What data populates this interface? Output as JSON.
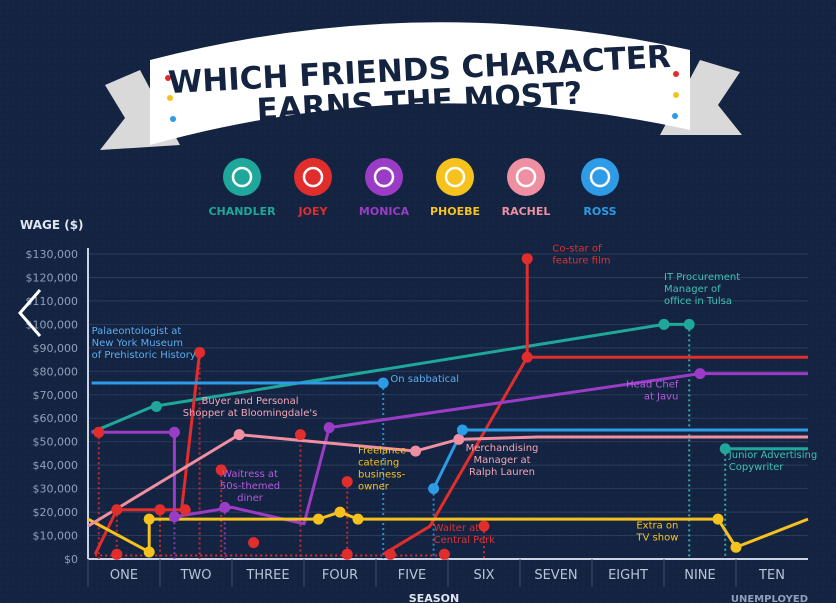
{
  "banner": {
    "line1": "WHICH FRIENDS CHARACTER",
    "line2": "EARNS THE MOST?"
  },
  "characters": [
    {
      "name": "CHANDLER",
      "color": "#1fa79b",
      "icon": "smiley-face-icon"
    },
    {
      "name": "JOEY",
      "color": "#e22d2d",
      "icon": "clapperboard-icon"
    },
    {
      "name": "MONICA",
      "color": "#9b3cc6",
      "icon": "chef-hat-icon"
    },
    {
      "name": "PHOEBE",
      "color": "#f6c21d",
      "icon": "guitar-icon"
    },
    {
      "name": "RACHEL",
      "color": "#ee8fa2",
      "icon": "hanger-icon"
    },
    {
      "name": "ROSS",
      "color": "#2e9be6",
      "icon": "dinosaur-footprint-icon"
    }
  ],
  "chart_data": {
    "type": "line",
    "ylabel": "WAGE ($)",
    "xlabel": "SEASON",
    "ylim": [
      0,
      130000
    ],
    "y_ticks": [
      "$0",
      "$10,000",
      "$20,000",
      "$30,000",
      "$40,000",
      "$50,000",
      "$60,000",
      "$70,000",
      "$80,000",
      "$90,000",
      "$100,000",
      "$110,000",
      "$120,000",
      "$130,000"
    ],
    "categories": [
      "ONE",
      "TWO",
      "THREE",
      "FOUR",
      "FIVE",
      "SIX",
      "SEVEN",
      "EIGHT",
      "NINE",
      "TEN"
    ],
    "unemployed_label": "UNEMPLOYED",
    "series": [
      {
        "name": "CHANDLER",
        "color": "#1fa79b",
        "points": [
          [
            0.05,
            54000
          ],
          [
            0.9,
            65000
          ],
          [
            8.0,
            100000
          ],
          [
            8.3,
            100000
          ]
        ],
        "job_stubs": [
          [
            8.85,
            47000,
            10.0,
            47000
          ]
        ]
      },
      {
        "name": "JOEY",
        "color": "#e22d2d",
        "points": [
          [
            0.1,
            2000
          ],
          [
            0.4,
            21000
          ],
          [
            1.0,
            21000
          ],
          [
            1.3,
            21000
          ],
          [
            1.55,
            88000
          ]
        ],
        "points2": [
          [
            4.1,
            2000
          ],
          [
            4.75,
            14000
          ],
          [
            6.1,
            86000
          ],
          [
            10.0,
            86000
          ]
        ],
        "spike": [
          [
            6.1,
            128000
          ],
          [
            6.1,
            86000
          ]
        ],
        "extra_points": [
          [
            0.0,
            54000
          ],
          [
            1.8,
            38000
          ],
          [
            2.3,
            6000
          ],
          [
            3.25,
            53000
          ],
          [
            3.45,
            2000
          ],
          [
            3.1,
            2000
          ],
          [
            3.55,
            33000
          ],
          [
            3.65,
            2000
          ]
        ]
      },
      {
        "name": "MONICA",
        "color": "#9b3cc6",
        "points": [
          [
            0.05,
            54000
          ],
          [
            1.2,
            54000
          ],
          [
            1.2,
            18000
          ],
          [
            2.0,
            22000
          ],
          [
            3.0,
            15000
          ],
          [
            3.35,
            56000
          ],
          [
            8.5,
            79000
          ],
          [
            10.0,
            79000
          ]
        ]
      },
      {
        "name": "PHOEBE",
        "color": "#f6c21d",
        "points": [
          [
            0.0,
            17000
          ],
          [
            0.85,
            3000
          ],
          [
            0.85,
            17000
          ],
          [
            3.2,
            17000
          ],
          [
            3.5,
            20000
          ],
          [
            3.75,
            17000
          ],
          [
            8.75,
            17000
          ],
          [
            9.0,
            5000
          ],
          [
            10.0,
            17000
          ]
        ]
      },
      {
        "name": "RACHEL",
        "color": "#ee8fa2",
        "points": [
          [
            0.0,
            14000
          ],
          [
            2.1,
            53000
          ],
          [
            2.8,
            51000
          ],
          [
            4.55,
            46000
          ],
          [
            5.15,
            51000
          ],
          [
            6.25,
            52000
          ],
          [
            10.0,
            52000
          ]
        ]
      },
      {
        "name": "ROSS",
        "color": "#2e9be6",
        "points": [
          [
            0.05,
            75000
          ],
          [
            4.1,
            75000
          ]
        ],
        "points2": [
          [
            4.8,
            30000
          ],
          [
            5.2,
            55000
          ],
          [
            10.0,
            55000
          ]
        ]
      }
    ],
    "annotations": [
      {
        "text": [
          "Palaeontologist at",
          "New York Museum",
          "of Prehistoric History"
        ],
        "color": "#5aaef0",
        "x": 0.05,
        "y": 96000,
        "anchor": "start"
      },
      {
        "text": [
          "Buyer and Personal",
          "Shopper at Bloomingdale's"
        ],
        "color": "#f3a7b6",
        "x": 2.25,
        "y": 66000,
        "anchor": "middle"
      },
      {
        "text": [
          "Waitress at",
          "50s-themed",
          "diner"
        ],
        "color": "#b65bdc",
        "x": 2.25,
        "y": 35000,
        "anchor": "middle"
      },
      {
        "text": [
          "Freelance",
          "catering",
          "business-",
          "owner"
        ],
        "color": "#f6c21d",
        "x": 3.75,
        "y": 45000,
        "anchor": "start"
      },
      {
        "text": [
          "On sabbatical"
        ],
        "color": "#5aaef0",
        "x": 4.2,
        "y": 75500,
        "anchor": "start"
      },
      {
        "text": [
          "Co-star of",
          "feature film"
        ],
        "color": "#e03131",
        "x": 6.45,
        "y": 131000,
        "anchor": "start"
      },
      {
        "text": [
          "IT Procurement",
          "Manager of",
          "office in Tulsa"
        ],
        "color": "#3fc1b3",
        "x": 8.0,
        "y": 119000,
        "anchor": "start"
      },
      {
        "text": [
          "Head Chef",
          "at Javu"
        ],
        "color": "#b65bdc",
        "x": 8.2,
        "y": 73000,
        "anchor": "end"
      },
      {
        "text": [
          "Merchandising",
          "Manager at",
          "Ralph Lauren"
        ],
        "color": "#f3a7b6",
        "x": 5.75,
        "y": 46000,
        "anchor": "middle"
      },
      {
        "text": [
          "Junior Advertising",
          "Copywriter"
        ],
        "color": "#3fc1b3",
        "x": 8.9,
        "y": 43000,
        "anchor": "start"
      },
      {
        "text": [
          "Waiter at",
          "Central Perk"
        ],
        "color": "#e03131",
        "x": 4.8,
        "y": 12000,
        "anchor": "start"
      },
      {
        "text": [
          "Extra on",
          "TV show"
        ],
        "color": "#f6c21d",
        "x": 8.2,
        "y": 13000,
        "anchor": "end"
      }
    ],
    "dots": [
      {
        "x": 0.95,
        "y": 65000,
        "c": "#1fa79b"
      },
      {
        "x": 8.0,
        "y": 100000,
        "c": "#1fa79b"
      },
      {
        "x": 8.35,
        "y": 100000,
        "c": "#1fa79b"
      },
      {
        "x": 8.85,
        "y": 47000,
        "c": "#1fa79b"
      },
      {
        "x": 0.15,
        "y": 54000,
        "c": "#e22d2d"
      },
      {
        "x": 0.4,
        "y": 21000,
        "c": "#e22d2d"
      },
      {
        "x": 1.0,
        "y": 21000,
        "c": "#e22d2d"
      },
      {
        "x": 1.35,
        "y": 21000,
        "c": "#e22d2d"
      },
      {
        "x": 1.55,
        "y": 88000,
        "c": "#e22d2d"
      },
      {
        "x": 0.4,
        "y": 2000,
        "c": "#e22d2d"
      },
      {
        "x": 1.85,
        "y": 38000,
        "c": "#e22d2d"
      },
      {
        "x": 2.3,
        "y": 7000,
        "c": "#e22d2d"
      },
      {
        "x": 2.95,
        "y": 53000,
        "c": "#e22d2d"
      },
      {
        "x": 3.6,
        "y": 33000,
        "c": "#e22d2d"
      },
      {
        "x": 3.6,
        "y": 2000,
        "c": "#e22d2d"
      },
      {
        "x": 4.2,
        "y": 2000,
        "c": "#e22d2d"
      },
      {
        "x": 4.95,
        "y": 2000,
        "c": "#e22d2d"
      },
      {
        "x": 5.5,
        "y": 14000,
        "c": "#e22d2d"
      },
      {
        "x": 6.1,
        "y": 86000,
        "c": "#e22d2d"
      },
      {
        "x": 6.1,
        "y": 128000,
        "c": "#e22d2d"
      },
      {
        "x": 1.2,
        "y": 54000,
        "c": "#9b3cc6"
      },
      {
        "x": 1.2,
        "y": 18000,
        "c": "#9b3cc6"
      },
      {
        "x": 1.9,
        "y": 22000,
        "c": "#9b3cc6"
      },
      {
        "x": 3.35,
        "y": 56000,
        "c": "#9b3cc6"
      },
      {
        "x": 8.5,
        "y": 79000,
        "c": "#9b3cc6"
      },
      {
        "x": 0.85,
        "y": 3000,
        "c": "#f6c21d"
      },
      {
        "x": 0.85,
        "y": 17000,
        "c": "#f6c21d"
      },
      {
        "x": 3.2,
        "y": 17000,
        "c": "#f6c21d"
      },
      {
        "x": 3.5,
        "y": 20000,
        "c": "#f6c21d"
      },
      {
        "x": 3.75,
        "y": 17000,
        "c": "#f6c21d"
      },
      {
        "x": 8.75,
        "y": 17000,
        "c": "#f6c21d"
      },
      {
        "x": 9.0,
        "y": 5000,
        "c": "#f6c21d"
      },
      {
        "x": 2.1,
        "y": 53000,
        "c": "#ee8fa2"
      },
      {
        "x": 4.55,
        "y": 46000,
        "c": "#ee8fa2"
      },
      {
        "x": 5.15,
        "y": 51000,
        "c": "#ee8fa2"
      },
      {
        "x": 4.1,
        "y": 75000,
        "c": "#2e9be6"
      },
      {
        "x": 4.8,
        "y": 30000,
        "c": "#2e9be6"
      },
      {
        "x": 5.2,
        "y": 55000,
        "c": "#2e9be6"
      }
    ]
  }
}
